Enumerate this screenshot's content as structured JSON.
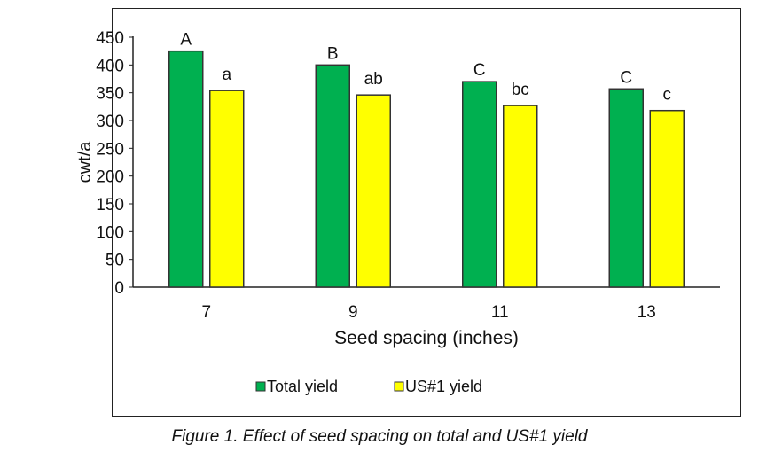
{
  "chart_data": {
    "type": "bar",
    "categories": [
      "7",
      "9",
      "11",
      "13"
    ],
    "series": [
      {
        "name": "Total yield",
        "color": "#00b050",
        "values": [
          425,
          400,
          370,
          357
        ],
        "letters": [
          "A",
          "B",
          "C",
          "C"
        ]
      },
      {
        "name": "US#1 yield",
        "color": "#ffff00",
        "values": [
          354,
          346,
          327,
          318
        ],
        "letters": [
          "a",
          "ab",
          "bc",
          "c"
        ]
      }
    ],
    "xlabel": "Seed spacing (inches)",
    "ylabel": "cwt/a",
    "ylim": [
      0,
      450
    ],
    "yticks": [
      0,
      50,
      100,
      150,
      200,
      250,
      300,
      350,
      400,
      450
    ],
    "grid": false,
    "legend": "bottom"
  },
  "caption": "Figure 1. Effect of seed spacing on total and US#1 yield"
}
